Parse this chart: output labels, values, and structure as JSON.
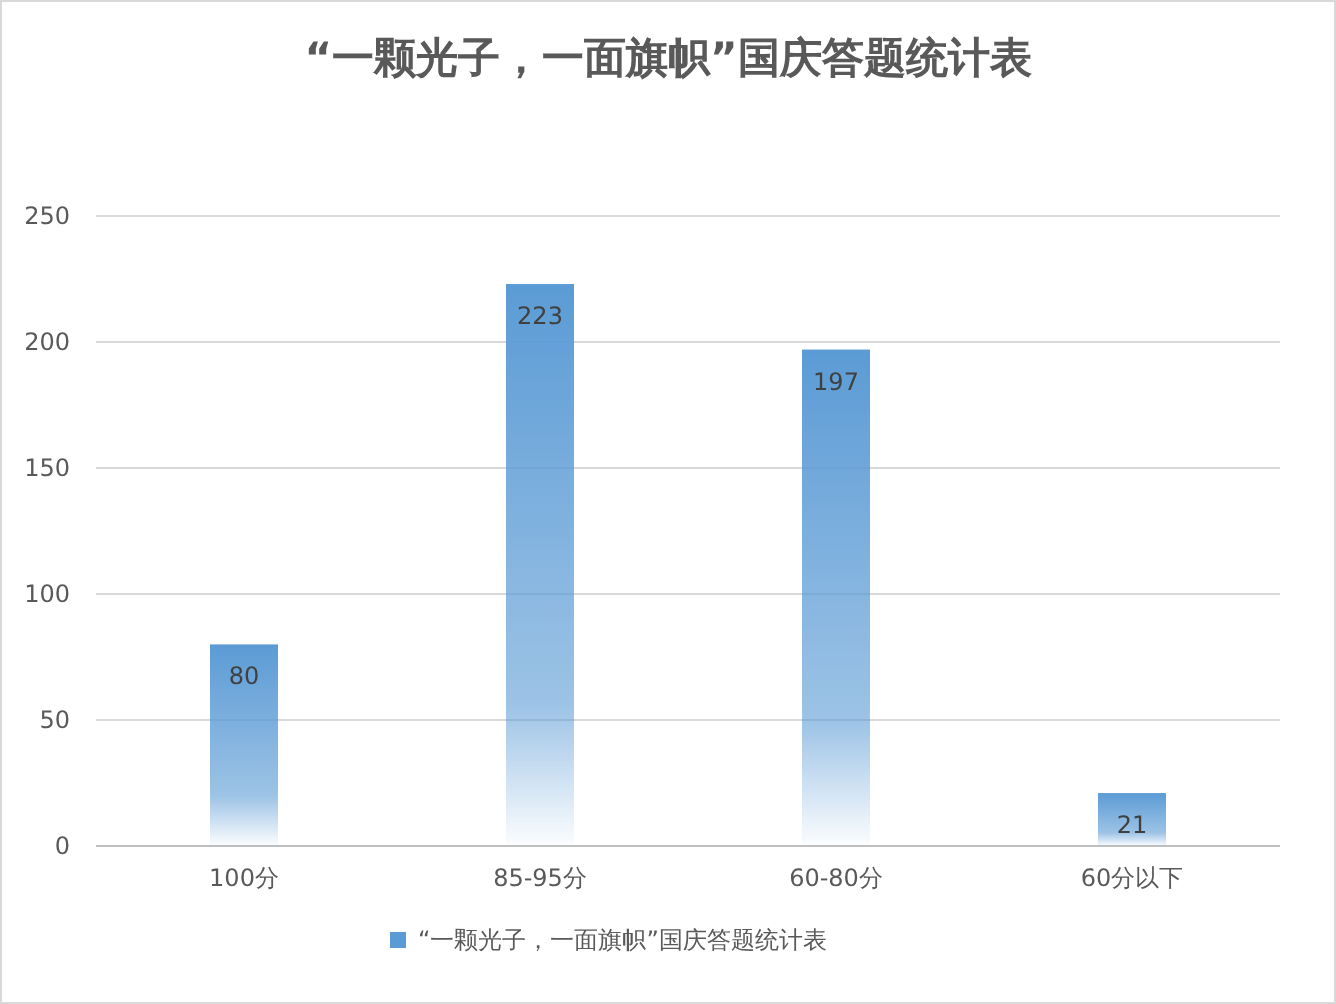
{
  "chart_data": {
    "type": "bar",
    "title": "“一颗光子，一面旗帜”国庆答题统计表",
    "categories": [
      "100分",
      "85-95分",
      "60-80分",
      "60分以下"
    ],
    "series": [
      {
        "name": "“一颗光子，一面旗帜”国庆答题统计表",
        "color": "#5b9bd5",
        "values": [
          80,
          223,
          197,
          21
        ]
      }
    ],
    "ylim": [
      0,
      250
    ],
    "yticks": [
      0,
      50,
      100,
      150,
      200,
      250
    ],
    "grid": "y",
    "legend": "bottom",
    "data_labels": true
  }
}
